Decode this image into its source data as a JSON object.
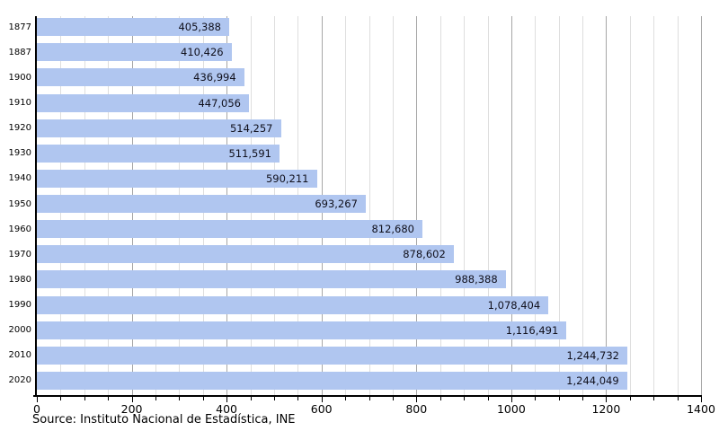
{
  "chart_data": {
    "type": "bar",
    "orientation": "horizontal",
    "title": "",
    "xlabel": "",
    "ylabel": "",
    "categories": [
      "1877",
      "1887",
      "1900",
      "1910",
      "1920",
      "1930",
      "1940",
      "1950",
      "1960",
      "1970",
      "1980",
      "1990",
      "2000",
      "2010",
      "2020"
    ],
    "values": [
      405388,
      410426,
      436994,
      447056,
      514257,
      511591,
      590211,
      693267,
      812680,
      878602,
      988388,
      1078404,
      1116491,
      1244732,
      1244049
    ],
    "value_labels": [
      "405,388",
      "410,426",
      "436,994",
      "447,056",
      "514,257",
      "511,591",
      "590,211",
      "693,267",
      "812,680",
      "878,602",
      "988,388",
      "1,078,404",
      "1,116,491",
      "1,244,732",
      "1,244,049"
    ],
    "axis_unit": "thousands",
    "xlim_thousands": [
      0,
      1400
    ],
    "x_tick_step_thousands": 200,
    "minor_grid_step_thousands": 50,
    "x_tick_labels": [
      "0",
      "200",
      "400",
      "600",
      "800",
      "1000",
      "1200",
      "1400"
    ],
    "grid": true,
    "legend": "none",
    "colors": {
      "bar_fill": "#b0c6f0",
      "value_label": "#10101c",
      "axis": "#000000",
      "grid_minor": "#dedede",
      "grid_major": "#a6a6a6",
      "tick_label": "#000000",
      "background": "#ffffff"
    }
  },
  "footer": {
    "source": "Source: Instituto Nacional de Estadística, INE"
  }
}
